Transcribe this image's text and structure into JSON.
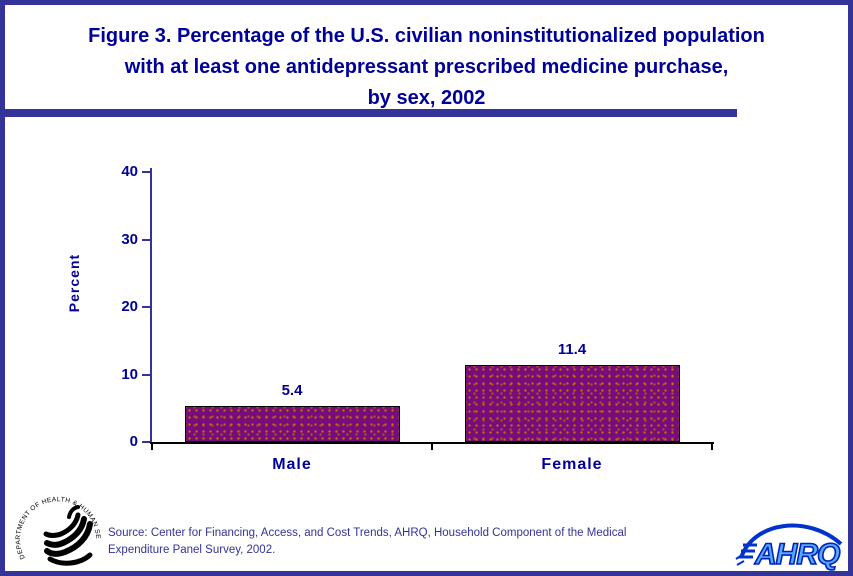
{
  "page": {
    "border_color": "#333399",
    "background_color": "#ffffff",
    "text_color": "#000099"
  },
  "title": {
    "lines": [
      "Figure 3. Percentage of the U.S. civilian noninstitutionalized population",
      "with at least one antidepressant prescribed medicine purchase,",
      "by sex, 2002"
    ]
  },
  "chart_data": {
    "type": "bar",
    "categories": [
      "Male",
      "Female"
    ],
    "values": [
      5.4,
      11.4
    ],
    "value_labels": [
      "5.4",
      "11.4"
    ],
    "title": "",
    "xlabel": "",
    "ylabel": "Percent",
    "ylim": [
      0,
      40
    ],
    "yticks": [
      0,
      10,
      20,
      30,
      40
    ],
    "grid": false,
    "legend": null,
    "bar_color": "#7A0B7C",
    "bar_border_color": "#000000",
    "y_axis_color": "#333399",
    "x_axis_color": "#000000",
    "label_color": "#000099"
  },
  "footer": {
    "source_lines": [
      "Source: Center for Financing, Access, and Cost Trends, AHRQ, Household Component of the Medical",
      "Expenditure Panel Survey, 2002."
    ],
    "hhs_logo_text": "DEPARTMENT OF HEALTH & HUMAN SERVICES • USA",
    "ahrq_logo_text": "AHRQ"
  }
}
